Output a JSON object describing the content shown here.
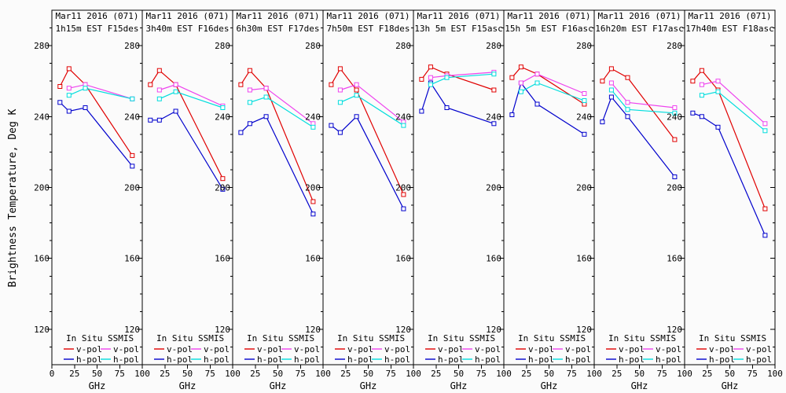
{
  "figure": {
    "ylabel": "Brightness Temperature, Deg K",
    "xlabel": "GHz",
    "background": "#fbfbfb",
    "frame_color": "#000000",
    "ylim": [
      100,
      300
    ],
    "yticks": [
      120,
      160,
      200,
      240,
      280
    ],
    "legend": {
      "col1_header": "In Situ",
      "col2_header": "SSMIS",
      "vpol_label": "v-pol",
      "hpol_label": "h-pol"
    },
    "colors": {
      "in_situ_v": "#e00000",
      "in_situ_h": "#0000cc",
      "ssmis_v": "#ee44ee",
      "ssmis_h": "#00dddd"
    }
  },
  "chart_data": [
    {
      "type": "line",
      "title_line1": "Mar11 2016 (071)",
      "title_line2": "1h15m EST F15des",
      "xlabel": "GHz",
      "xlim": [
        0,
        100
      ],
      "ylim": [
        100,
        300
      ],
      "xticks": [
        0,
        25,
        50,
        75,
        100
      ],
      "yticks": [
        120,
        160,
        200,
        240,
        280
      ],
      "series": [
        {
          "name": "In Situ v-pol",
          "color_key": "in_situ_v",
          "x": [
            9,
            19,
            37,
            89
          ],
          "y": [
            257,
            267,
            258,
            218
          ]
        },
        {
          "name": "In Situ h-pol",
          "color_key": "in_situ_h",
          "x": [
            9,
            19,
            37,
            89
          ],
          "y": [
            248,
            243,
            245,
            212
          ]
        },
        {
          "name": "SSMIS v-pol",
          "color_key": "ssmis_v",
          "x": [
            19,
            37,
            89
          ],
          "y": [
            256,
            258,
            250
          ]
        },
        {
          "name": "SSMIS h-pol",
          "color_key": "ssmis_h",
          "x": [
            19,
            37,
            89
          ],
          "y": [
            252,
            256,
            250
          ]
        }
      ]
    },
    {
      "type": "line",
      "title_line1": "Mar11 2016 (071)",
      "title_line2": "3h40m EST F16des",
      "xlabel": "GHz",
      "xlim": [
        0,
        100
      ],
      "ylim": [
        100,
        300
      ],
      "xticks": [
        0,
        25,
        50,
        75,
        100
      ],
      "yticks": [
        120,
        160,
        200,
        240,
        280
      ],
      "series": [
        {
          "name": "In Situ v-pol",
          "color_key": "in_situ_v",
          "x": [
            9,
            19,
            37,
            89
          ],
          "y": [
            258,
            266,
            258,
            205
          ]
        },
        {
          "name": "In Situ h-pol",
          "color_key": "in_situ_h",
          "x": [
            9,
            19,
            37,
            89
          ],
          "y": [
            238,
            238,
            243,
            199
          ]
        },
        {
          "name": "SSMIS v-pol",
          "color_key": "ssmis_v",
          "x": [
            19,
            37,
            89
          ],
          "y": [
            255,
            258,
            246
          ]
        },
        {
          "name": "SSMIS h-pol",
          "color_key": "ssmis_h",
          "x": [
            19,
            37,
            89
          ],
          "y": [
            250,
            254,
            245
          ]
        }
      ]
    },
    {
      "type": "line",
      "title_line1": "Mar11 2016 (071)",
      "title_line2": "6h30m EST F17des",
      "xlabel": "GHz",
      "xlim": [
        0,
        100
      ],
      "ylim": [
        100,
        300
      ],
      "xticks": [
        0,
        25,
        50,
        75,
        100
      ],
      "yticks": [
        120,
        160,
        200,
        240,
        280
      ],
      "series": [
        {
          "name": "In Situ v-pol",
          "color_key": "in_situ_v",
          "x": [
            9,
            19,
            37,
            89
          ],
          "y": [
            258,
            266,
            256,
            192
          ]
        },
        {
          "name": "In Situ h-pol",
          "color_key": "in_situ_h",
          "x": [
            9,
            19,
            37,
            89
          ],
          "y": [
            231,
            236,
            240,
            185
          ]
        },
        {
          "name": "SSMIS v-pol",
          "color_key": "ssmis_v",
          "x": [
            19,
            37,
            89
          ],
          "y": [
            255,
            256,
            236
          ]
        },
        {
          "name": "SSMIS h-pol",
          "color_key": "ssmis_h",
          "x": [
            19,
            37,
            89
          ],
          "y": [
            248,
            251,
            234
          ]
        }
      ]
    },
    {
      "type": "line",
      "title_line1": "Mar11 2016 (071)",
      "title_line2": "7h50m EST F18des",
      "xlabel": "GHz",
      "xlim": [
        0,
        100
      ],
      "ylim": [
        100,
        300
      ],
      "xticks": [
        0,
        25,
        50,
        75,
        100
      ],
      "yticks": [
        120,
        160,
        200,
        240,
        280
      ],
      "series": [
        {
          "name": "In Situ v-pol",
          "color_key": "in_situ_v",
          "x": [
            9,
            19,
            37,
            89
          ],
          "y": [
            258,
            267,
            255,
            196
          ]
        },
        {
          "name": "In Situ h-pol",
          "color_key": "in_situ_h",
          "x": [
            9,
            19,
            37,
            89
          ],
          "y": [
            235,
            231,
            240,
            188
          ]
        },
        {
          "name": "SSMIS v-pol",
          "color_key": "ssmis_v",
          "x": [
            19,
            37,
            89
          ],
          "y": [
            255,
            258,
            237
          ]
        },
        {
          "name": "SSMIS h-pol",
          "color_key": "ssmis_h",
          "x": [
            19,
            37,
            89
          ],
          "y": [
            248,
            252,
            235
          ]
        }
      ]
    },
    {
      "type": "line",
      "title_line1": "Mar11 2016 (071)",
      "title_line2": "13h 5m EST F15asc",
      "xlabel": "GHz",
      "xlim": [
        0,
        100
      ],
      "ylim": [
        100,
        300
      ],
      "xticks": [
        0,
        25,
        50,
        75,
        100
      ],
      "yticks": [
        120,
        160,
        200,
        240,
        280
      ],
      "series": [
        {
          "name": "In Situ v-pol",
          "color_key": "in_situ_v",
          "x": [
            9,
            19,
            37,
            89
          ],
          "y": [
            261,
            268,
            264,
            255
          ]
        },
        {
          "name": "In Situ h-pol",
          "color_key": "in_situ_h",
          "x": [
            9,
            19,
            37,
            89
          ],
          "y": [
            243,
            259,
            245,
            236
          ]
        },
        {
          "name": "SSMIS v-pol",
          "color_key": "ssmis_v",
          "x": [
            19,
            37,
            89
          ],
          "y": [
            262,
            263,
            265
          ]
        },
        {
          "name": "SSMIS h-pol",
          "color_key": "ssmis_h",
          "x": [
            19,
            37,
            89
          ],
          "y": [
            258,
            262,
            264
          ]
        }
      ]
    },
    {
      "type": "line",
      "title_line1": "Mar11 2016 (071)",
      "title_line2": "15h 5m EST F16asc",
      "xlabel": "GHz",
      "xlim": [
        0,
        100
      ],
      "ylim": [
        100,
        300
      ],
      "xticks": [
        0,
        25,
        50,
        75,
        100
      ],
      "yticks": [
        120,
        160,
        200,
        240,
        280
      ],
      "series": [
        {
          "name": "In Situ v-pol",
          "color_key": "in_situ_v",
          "x": [
            9,
            19,
            37,
            89
          ],
          "y": [
            262,
            268,
            264,
            247
          ]
        },
        {
          "name": "In Situ h-pol",
          "color_key": "in_situ_h",
          "x": [
            9,
            19,
            37,
            89
          ],
          "y": [
            241,
            259,
            247,
            230
          ]
        },
        {
          "name": "SSMIS v-pol",
          "color_key": "ssmis_v",
          "x": [
            19,
            37,
            89
          ],
          "y": [
            259,
            264,
            253
          ]
        },
        {
          "name": "SSMIS h-pol",
          "color_key": "ssmis_h",
          "x": [
            19,
            37,
            89
          ],
          "y": [
            254,
            259,
            249
          ]
        }
      ]
    },
    {
      "type": "line",
      "title_line1": "Mar11 2016 (071)",
      "title_line2": "16h20m EST F17asc",
      "xlabel": "GHz",
      "xlim": [
        0,
        100
      ],
      "ylim": [
        100,
        300
      ],
      "xticks": [
        0,
        25,
        50,
        75,
        100
      ],
      "yticks": [
        120,
        160,
        200,
        240,
        280
      ],
      "series": [
        {
          "name": "In Situ v-pol",
          "color_key": "in_situ_v",
          "x": [
            9,
            19,
            37,
            89
          ],
          "y": [
            260,
            267,
            262,
            227
          ]
        },
        {
          "name": "In Situ h-pol",
          "color_key": "in_situ_h",
          "x": [
            9,
            19,
            37,
            89
          ],
          "y": [
            237,
            251,
            240,
            206
          ]
        },
        {
          "name": "SSMIS v-pol",
          "color_key": "ssmis_v",
          "x": [
            19,
            37,
            89
          ],
          "y": [
            259,
            248,
            245
          ]
        },
        {
          "name": "SSMIS h-pol",
          "color_key": "ssmis_h",
          "x": [
            19,
            37,
            89
          ],
          "y": [
            255,
            244,
            242
          ]
        }
      ]
    },
    {
      "type": "line",
      "title_line1": "Mar11 2016 (071)",
      "title_line2": "17h40m EST F18asc",
      "xlabel": "GHz",
      "xlim": [
        0,
        100
      ],
      "ylim": [
        100,
        300
      ],
      "xticks": [
        0,
        25,
        50,
        75,
        100
      ],
      "yticks": [
        120,
        160,
        200,
        240,
        280
      ],
      "series": [
        {
          "name": "In Situ v-pol",
          "color_key": "in_situ_v",
          "x": [
            9,
            19,
            37,
            89
          ],
          "y": [
            260,
            266,
            255,
            188
          ]
        },
        {
          "name": "In Situ h-pol",
          "color_key": "in_situ_h",
          "x": [
            9,
            19,
            37,
            89
          ],
          "y": [
            242,
            240,
            234,
            173
          ]
        },
        {
          "name": "SSMIS v-pol",
          "color_key": "ssmis_v",
          "x": [
            19,
            37,
            89
          ],
          "y": [
            258,
            260,
            236
          ]
        },
        {
          "name": "SSMIS h-pol",
          "color_key": "ssmis_h",
          "x": [
            19,
            37,
            89
          ],
          "y": [
            252,
            254,
            232
          ]
        }
      ]
    }
  ]
}
